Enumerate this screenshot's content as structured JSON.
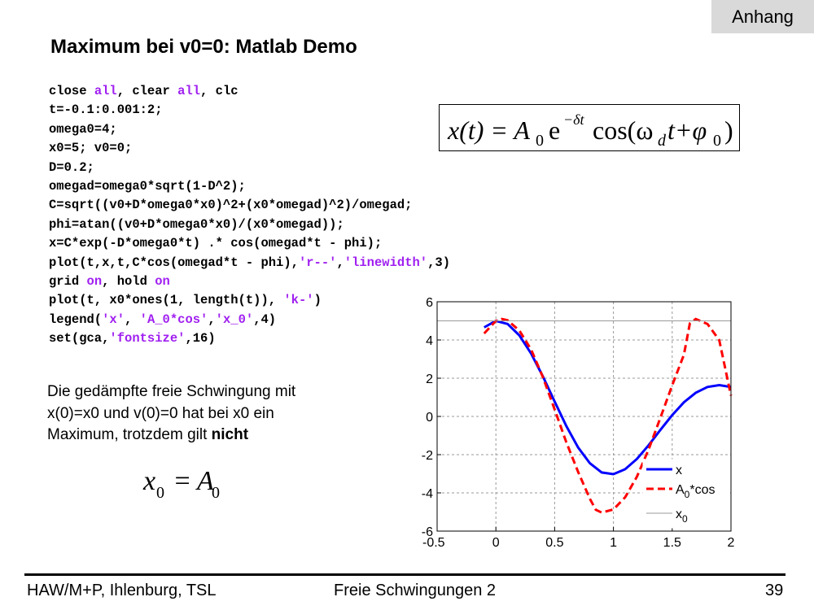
{
  "slide": {
    "tag": "Anhang",
    "title": "Maximum bei v0=0: Matlab Demo"
  },
  "code_lines": [
    [
      {
        "t": "close "
      },
      {
        "t": "all",
        "k": 1
      },
      {
        "t": ", clear "
      },
      {
        "t": "all",
        "k": 1
      },
      {
        "t": ", clc"
      }
    ],
    [
      {
        "t": "t=-0.1:0.001:2;"
      }
    ],
    [
      {
        "t": "omega0=4;"
      }
    ],
    [
      {
        "t": "x0=5; v0=0;"
      }
    ],
    [
      {
        "t": "D=0.2;"
      }
    ],
    [
      {
        "t": "omegad=omega0*sqrt(1-D^2);"
      }
    ],
    [
      {
        "t": "C=sqrt((v0+D*omega0*x0)^2+(x0*omegad)^2)/omegad;"
      }
    ],
    [
      {
        "t": "phi=atan((v0+D*omega0*x0)/(x0*omegad));"
      }
    ],
    [
      {
        "t": "x=C*exp(-D*omega0*t) .* cos(omegad*t - phi);"
      }
    ],
    [
      {
        "t": "plot(t,x,t,C*cos(omegad*t - phi),"
      },
      {
        "t": "'r--'",
        "k": 1
      },
      {
        "t": ","
      },
      {
        "t": "'linewidth'",
        "k": 1
      },
      {
        "t": ",3)"
      }
    ],
    [
      {
        "t": "grid "
      },
      {
        "t": "on",
        "k": 1
      },
      {
        "t": ", hold "
      },
      {
        "t": "on",
        "k": 1
      }
    ],
    [
      {
        "t": "plot(t, x0*ones(1, length(t)), "
      },
      {
        "t": "'k-'",
        "k": 1
      },
      {
        "t": ")"
      }
    ],
    [
      {
        "t": "legend("
      },
      {
        "t": "'x'",
        "k": 1
      },
      {
        "t": ", "
      },
      {
        "t": "'A_0*cos'",
        "k": 1
      },
      {
        "t": ","
      },
      {
        "t": "'x_0'",
        "k": 1
      },
      {
        "t": ",4)"
      }
    ],
    [
      {
        "t": "set(gca,"
      },
      {
        "t": "'fontsize'",
        "k": 1
      },
      {
        "t": ",16)"
      }
    ]
  ],
  "colors": {
    "keyword": "#a020f0",
    "series_x": "#0000ff",
    "series_cos": "#ff0000",
    "series_x0": "#000000",
    "tag_bg": "#d9d9d9"
  },
  "formula": {
    "lhs": "x(t) = A",
    "a_sub": "0",
    "e": "e",
    "exp": "−δt",
    "cos": "cos(ω",
    "w_sub": "d",
    "mid": "t+φ",
    "phi_sub": "0",
    "close": ")"
  },
  "note": {
    "line1": "Die gedämpfte freie Schwingung mit",
    "line2": "x(0)=x0 und v(0)=0 hat bei x0 ein",
    "line3_pre": "Maximum, trotzdem gilt ",
    "line3_bold": "nicht"
  },
  "eq2": {
    "x": "x",
    "x_sub": "0",
    "eq": " = ",
    "a": "A",
    "a_sub": "0"
  },
  "chart_data": {
    "type": "line",
    "xlim": [
      -0.5,
      2
    ],
    "ylim": [
      -6,
      6
    ],
    "xticks": [
      "-0.5",
      "0",
      "0.5",
      "1",
      "1.5",
      "2"
    ],
    "yticks": [
      "6",
      "4",
      "2",
      "0",
      "-2",
      "-4",
      "-6"
    ],
    "grid": true,
    "legend_position": "bottom-right",
    "series": [
      {
        "name": "x",
        "style": "solid",
        "x": [
          -0.1,
          0,
          0.1,
          0.2,
          0.3,
          0.4,
          0.5,
          0.6,
          0.7,
          0.8,
          0.9,
          1.0,
          1.1,
          1.2,
          1.3,
          1.4,
          1.5,
          1.6,
          1.7,
          1.8,
          1.9,
          2.0
        ],
        "y": [
          4.66,
          5.0,
          4.84,
          4.24,
          3.29,
          2.09,
          0.78,
          -0.51,
          -1.63,
          -2.45,
          -2.93,
          -3.02,
          -2.76,
          -2.22,
          -1.5,
          -0.7,
          0.07,
          0.74,
          1.24,
          1.54,
          1.64,
          1.54
        ]
      },
      {
        "name": "A_0*cos",
        "style": "dashed",
        "x": [
          -0.1,
          0,
          0.05,
          0.1,
          0.2,
          0.3,
          0.4,
          0.5,
          0.6,
          0.7,
          0.8,
          0.85,
          0.9,
          1.0,
          1.1,
          1.2,
          1.3,
          1.4,
          1.5,
          1.6,
          1.65,
          1.7,
          1.8,
          1.9,
          2.0
        ],
        "y": [
          4.34,
          5.0,
          5.1,
          5.03,
          4.49,
          3.5,
          2.05,
          0.36,
          -1.36,
          -2.91,
          -4.31,
          -4.88,
          -5.03,
          -4.87,
          -4.23,
          -3.15,
          -1.72,
          -0.06,
          1.63,
          3.23,
          4.87,
          5.1,
          4.84,
          3.99,
          1.09
        ]
      },
      {
        "name": "x_0",
        "style": "thin",
        "x": [
          -0.5,
          2
        ],
        "y": [
          5,
          5
        ]
      }
    ]
  },
  "footer": {
    "left": "HAW/M+P, Ihlenburg, TSL",
    "center": "Freie Schwingungen 2",
    "page": "39"
  }
}
